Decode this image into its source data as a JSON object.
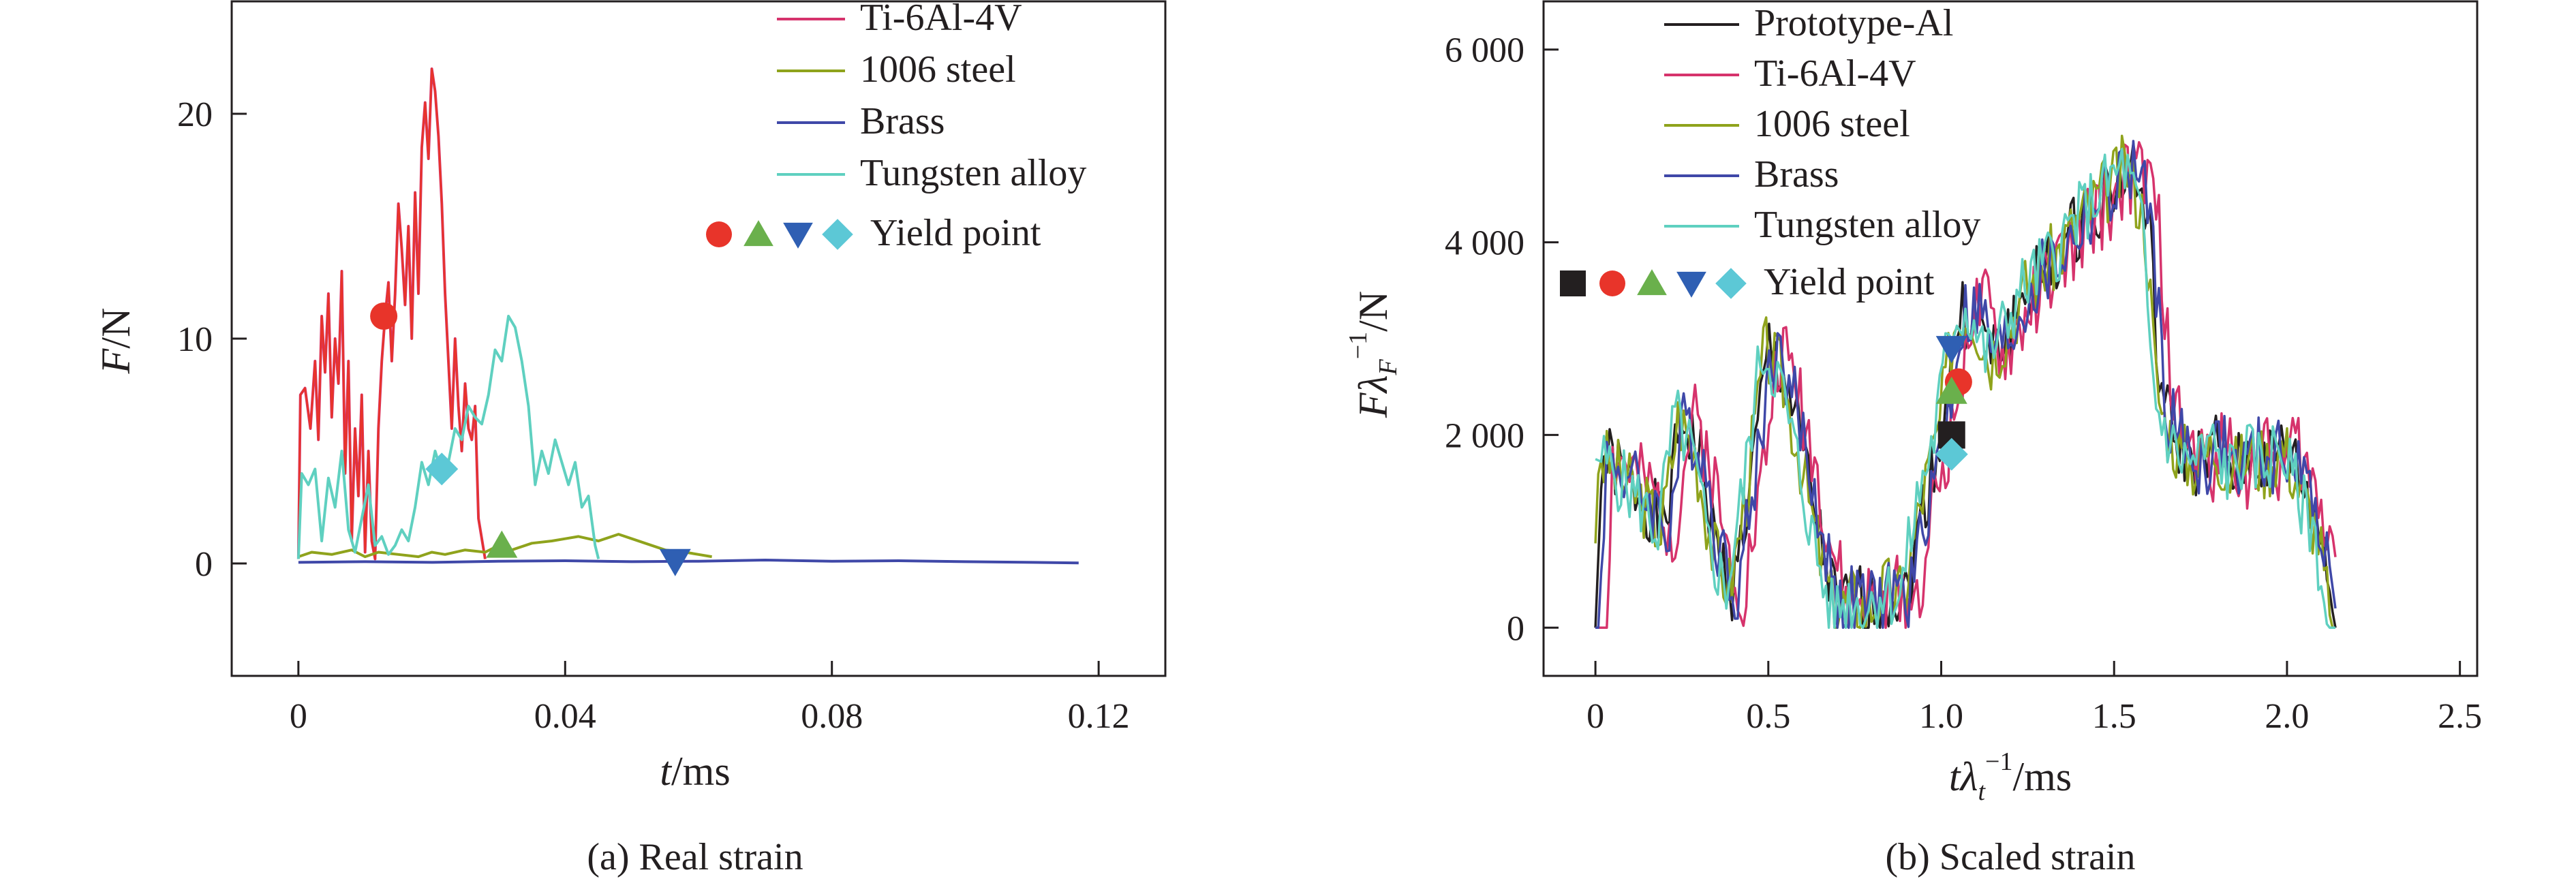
{
  "chart_data": [
    {
      "id": "a",
      "type": "line",
      "caption": "(a) Real strain",
      "xlabel": "t/ms",
      "ylabel": "F/N",
      "xlim": [
        -0.01,
        0.13
      ],
      "ylim": [
        -5,
        25
      ],
      "xticks": [
        0,
        0.04,
        0.08,
        0.12
      ],
      "xtick_labels": [
        "0",
        "0.04",
        "0.08",
        "0.12"
      ],
      "yticks": [
        0,
        10,
        20
      ],
      "ytick_labels": [
        "0",
        "10",
        "20"
      ],
      "grid": false,
      "legend_position": "top-right",
      "legend": [
        {
          "label": "Ti-6Al-4V",
          "color": "#d6336c"
        },
        {
          "label": "1006 steel",
          "color": "#8fa31c"
        },
        {
          "label": "Brass",
          "color": "#3f48a8"
        },
        {
          "label": "Tungsten alloy",
          "color": "#5fd0c0"
        }
      ],
      "yield_legend_label": "Yield point",
      "yield_markers": [
        {
          "shape": "circle",
          "color": "#e8342a"
        },
        {
          "shape": "triangle-up",
          "color": "#6ab04c"
        },
        {
          "shape": "triangle-down",
          "color": "#2f5fb3"
        },
        {
          "shape": "diamond",
          "color": "#5cc8d6"
        }
      ],
      "series": [
        {
          "name": "Ti-6Al-4V",
          "color": "#d6336c",
          "overlay_color": "#e8342a",
          "x": [
            0,
            0.0003,
            0.001,
            0.0018,
            0.0025,
            0.003,
            0.0035,
            0.004,
            0.0045,
            0.005,
            0.0055,
            0.006,
            0.0065,
            0.007,
            0.0075,
            0.008,
            0.0085,
            0.009,
            0.0095,
            0.01,
            0.0105,
            0.011,
            0.0115,
            0.012,
            0.0125,
            0.013,
            0.0135,
            0.014,
            0.0145,
            0.015,
            0.0155,
            0.016,
            0.0165,
            0.017,
            0.0175,
            0.018,
            0.0185,
            0.019,
            0.0195,
            0.02,
            0.0205,
            0.021,
            0.0215,
            0.022,
            0.0225,
            0.023,
            0.0235,
            0.024,
            0.0245,
            0.025,
            0.0255,
            0.026,
            0.0265,
            0.027,
            0.028
          ],
          "y": [
            0.2,
            7.5,
            7.8,
            6.0,
            9.0,
            5.5,
            11.0,
            8.5,
            12.0,
            6.5,
            10.0,
            8.0,
            13.0,
            4.0,
            9.0,
            1.0,
            6.0,
            3.0,
            7.5,
            0.5,
            5.0,
            1.0,
            0.2,
            6.0,
            9.0,
            11.0,
            12.5,
            9.0,
            12.0,
            16.0,
            14.0,
            11.5,
            15.0,
            10.0,
            16.5,
            12.0,
            18.5,
            20.5,
            18.0,
            22.0,
            21.0,
            19.0,
            16.0,
            12.0,
            9.0,
            6.0,
            10.0,
            7.0,
            5.0,
            8.0,
            6.0,
            5.5,
            7.0,
            2.0,
            0.2
          ]
        },
        {
          "name": "1006 steel",
          "color": "#8fa31c",
          "x": [
            0,
            0.002,
            0.005,
            0.008,
            0.01,
            0.012,
            0.015,
            0.018,
            0.02,
            0.022,
            0.025,
            0.028,
            0.03,
            0.032,
            0.035,
            0.038,
            0.04,
            0.042,
            0.045,
            0.048,
            0.05,
            0.052,
            0.055,
            0.058,
            0.06,
            0.062
          ],
          "y": [
            0.3,
            0.5,
            0.4,
            0.6,
            0.3,
            0.5,
            0.4,
            0.3,
            0.5,
            0.4,
            0.6,
            0.5,
            0.8,
            0.6,
            0.9,
            1.0,
            1.1,
            1.2,
            1.0,
            1.3,
            1.1,
            0.9,
            0.6,
            0.5,
            0.4,
            0.3
          ]
        },
        {
          "name": "Brass",
          "color": "#3f48a8",
          "x": [
            0,
            0.01,
            0.02,
            0.03,
            0.04,
            0.05,
            0.06,
            0.07,
            0.08,
            0.09,
            0.1,
            0.11,
            0.117
          ],
          "y": [
            0.05,
            0.08,
            0.05,
            0.1,
            0.12,
            0.08,
            0.1,
            0.15,
            0.1,
            0.12,
            0.08,
            0.05,
            0.02
          ]
        },
        {
          "name": "Tungsten alloy",
          "color": "#5fd0c0",
          "x": [
            0,
            0.0005,
            0.0015,
            0.0025,
            0.0035,
            0.0045,
            0.0055,
            0.0065,
            0.0075,
            0.0085,
            0.0095,
            0.0105,
            0.0115,
            0.0125,
            0.0135,
            0.0145,
            0.0155,
            0.0165,
            0.0175,
            0.0185,
            0.0195,
            0.0205,
            0.0215,
            0.0225,
            0.0235,
            0.0245,
            0.0255,
            0.0265,
            0.0275,
            0.0285,
            0.0295,
            0.0305,
            0.0315,
            0.0325,
            0.0335,
            0.0345,
            0.0355,
            0.0365,
            0.0375,
            0.0385,
            0.0395,
            0.0405,
            0.0415,
            0.0425,
            0.0435,
            0.0445,
            0.045
          ],
          "y": [
            0.2,
            4.0,
            3.5,
            4.2,
            1.0,
            3.8,
            2.5,
            5.0,
            1.5,
            0.5,
            2.0,
            3.5,
            0.8,
            1.2,
            0.4,
            0.8,
            1.5,
            1.0,
            2.5,
            4.5,
            3.5,
            5.0,
            4.0,
            4.5,
            6.0,
            5.5,
            7.0,
            6.5,
            6.2,
            7.5,
            9.5,
            9.0,
            11.0,
            10.5,
            9.0,
            7.0,
            3.5,
            5.0,
            4.0,
            5.5,
            4.5,
            3.5,
            4.5,
            2.5,
            3.0,
            0.8,
            0.2
          ]
        }
      ],
      "yield_points": [
        {
          "series": "Ti-6Al-4V",
          "shape": "circle",
          "color": "#e8342a",
          "x": 0.0128,
          "y": 11.0
        },
        {
          "series": "Tungsten alloy",
          "shape": "diamond",
          "color": "#5cc8d6",
          "x": 0.0215,
          "y": 4.2
        },
        {
          "series": "1006 steel",
          "shape": "triangle-up",
          "color": "#6ab04c",
          "x": 0.0305,
          "y": 0.8
        },
        {
          "series": "Brass",
          "shape": "triangle-down",
          "color": "#2f5fb3",
          "x": 0.0565,
          "y": 0.1
        }
      ]
    },
    {
      "id": "b",
      "type": "line",
      "caption": "(b) Scaled strain",
      "xlabel": "tλt⁻¹/ms",
      "ylabel": "FλF⁻¹/N",
      "xlim": [
        -0.15,
        2.55
      ],
      "ylim": [
        -500,
        6500
      ],
      "xticks": [
        0,
        0.5,
        1.0,
        1.5,
        2.0,
        2.5
      ],
      "xtick_labels": [
        "0",
        "0.5",
        "1.0",
        "1.5",
        "2.0",
        "2.5"
      ],
      "yticks": [
        0,
        2000,
        4000,
        6000
      ],
      "ytick_labels": [
        "0",
        "2 000",
        "4 000",
        "6 000"
      ],
      "grid": false,
      "legend_position": "top-left",
      "legend": [
        {
          "label": "Prototype-Al",
          "color": "#231f20"
        },
        {
          "label": "Ti-6Al-4V",
          "color": "#d6336c"
        },
        {
          "label": "1006 steel",
          "color": "#8fa31c"
        },
        {
          "label": "Brass",
          "color": "#3f48a8"
        },
        {
          "label": "Tungsten alloy",
          "color": "#5fd0c0"
        }
      ],
      "yield_legend_label": "Yield point",
      "yield_markers": [
        {
          "shape": "square",
          "color": "#231f20"
        },
        {
          "shape": "circle",
          "color": "#e8342a"
        },
        {
          "shape": "triangle-up",
          "color": "#6ab04c"
        },
        {
          "shape": "triangle-down",
          "color": "#2f5fb3"
        },
        {
          "shape": "diamond",
          "color": "#5cc8d6"
        }
      ],
      "base_curve": {
        "x": [
          0,
          0.02,
          0.05,
          0.1,
          0.15,
          0.2,
          0.25,
          0.3,
          0.35,
          0.4,
          0.45,
          0.5,
          0.55,
          0.6,
          0.65,
          0.7,
          0.75,
          0.8,
          0.85,
          0.9,
          0.95,
          1.0,
          1.05,
          1.1,
          1.15,
          1.2,
          1.25,
          1.3,
          1.35,
          1.4,
          1.45,
          1.5,
          1.55,
          1.6,
          1.63,
          1.65,
          1.7,
          1.75,
          1.8,
          1.85,
          1.9,
          1.95,
          2.0,
          2.05,
          2.1,
          2.13,
          2.14
        ],
        "y": [
          0,
          1750,
          1700,
          1500,
          1300,
          1000,
          2200,
          1800,
          800,
          400,
          1500,
          2900,
          2600,
          1800,
          900,
          150,
          300,
          200,
          400,
          300,
          1300,
          2000,
          3200,
          3300,
          2800,
          3100,
          3500,
          3700,
          3900,
          4200,
          4400,
          4600,
          4800,
          4200,
          2600,
          2200,
          1800,
          1700,
          1900,
          1600,
          1800,
          1700,
          1900,
          1400,
          1000,
          200,
          0
        ]
      },
      "series": [
        {
          "name": "Prototype-Al",
          "color": "#231f20",
          "x_shift": 0.0,
          "y_scale": 1.0,
          "noise_amp": 380,
          "seed": 1
        },
        {
          "name": "Ti-6Al-4V",
          "color": "#d6336c",
          "x_shift": 0.03,
          "y_scale": 1.0,
          "noise_amp": 420,
          "seed": 2
        },
        {
          "name": "1006 steel",
          "color": "#8fa31c",
          "x_shift": -0.01,
          "y_scale": 1.0,
          "noise_amp": 380,
          "seed": 3
        },
        {
          "name": "Brass",
          "color": "#3f48a8",
          "x_shift": 0.01,
          "y_scale": 1.0,
          "noise_amp": 400,
          "seed": 4
        },
        {
          "name": "Tungsten alloy",
          "color": "#5fd0c0",
          "x_shift": -0.02,
          "y_scale": 1.0,
          "noise_amp": 360,
          "seed": 5
        }
      ],
      "yield_points": [
        {
          "series": "Brass",
          "shape": "triangle-down",
          "color": "#2f5fb3",
          "x": 1.03,
          "y": 2900
        },
        {
          "series": "Ti-6Al-4V",
          "shape": "circle",
          "color": "#e8342a",
          "x": 1.05,
          "y": 2550
        },
        {
          "series": "1006 steel",
          "shape": "triangle-up",
          "color": "#6ab04c",
          "x": 1.03,
          "y": 2450
        },
        {
          "series": "Prototype-Al",
          "shape": "square",
          "color": "#231f20",
          "x": 1.03,
          "y": 2000
        },
        {
          "series": "Tungsten alloy",
          "shape": "diamond",
          "color": "#5cc8d6",
          "x": 1.03,
          "y": 1800
        }
      ]
    }
  ]
}
